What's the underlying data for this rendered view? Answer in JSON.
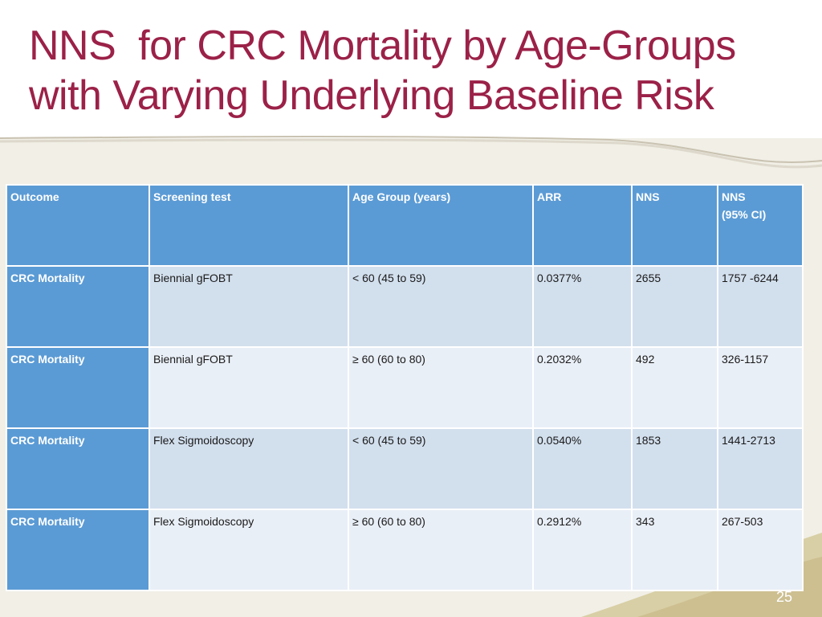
{
  "slide": {
    "title_line1": "NNS  for CRC Mortality by Age-Groups",
    "title_line2": "with Varying Underlying Baseline Risk",
    "page_number": "25"
  },
  "colors": {
    "title": "#9b2148",
    "header_fill": "#5b9bd5",
    "band_a": "#d2dfed",
    "band_b": "#e9eff7",
    "background": "#f1efe6"
  },
  "table": {
    "headers": [
      {
        "line1": "Outcome",
        "line2": ""
      },
      {
        "line1": "Screening test",
        "line2": ""
      },
      {
        "line1": "Age Group (years)",
        "line2": ""
      },
      {
        "line1": "ARR",
        "line2": ""
      },
      {
        "line1": "NNS",
        "line2": ""
      },
      {
        "line1": "NNS",
        "line2": "(95% CI)"
      }
    ],
    "rows": [
      [
        "CRC Mortality",
        "Biennial gFOBT",
        "< 60 (45 to 59)",
        "0.0377%",
        "2655",
        "1757 -6244"
      ],
      [
        "CRC Mortality",
        "Biennial gFOBT",
        "≥ 60 (60 to 80)",
        "0.2032%",
        "492",
        "326-1157"
      ],
      [
        "CRC Mortality",
        "Flex Sigmoidoscopy",
        "< 60 (45 to 59)",
        "0.0540%",
        "1853",
        "1441-2713"
      ],
      [
        "CRC Mortality",
        "Flex Sigmoidoscopy",
        "≥ 60 (60 to 80)",
        "0.2912%",
        "343",
        "267-503"
      ]
    ]
  }
}
